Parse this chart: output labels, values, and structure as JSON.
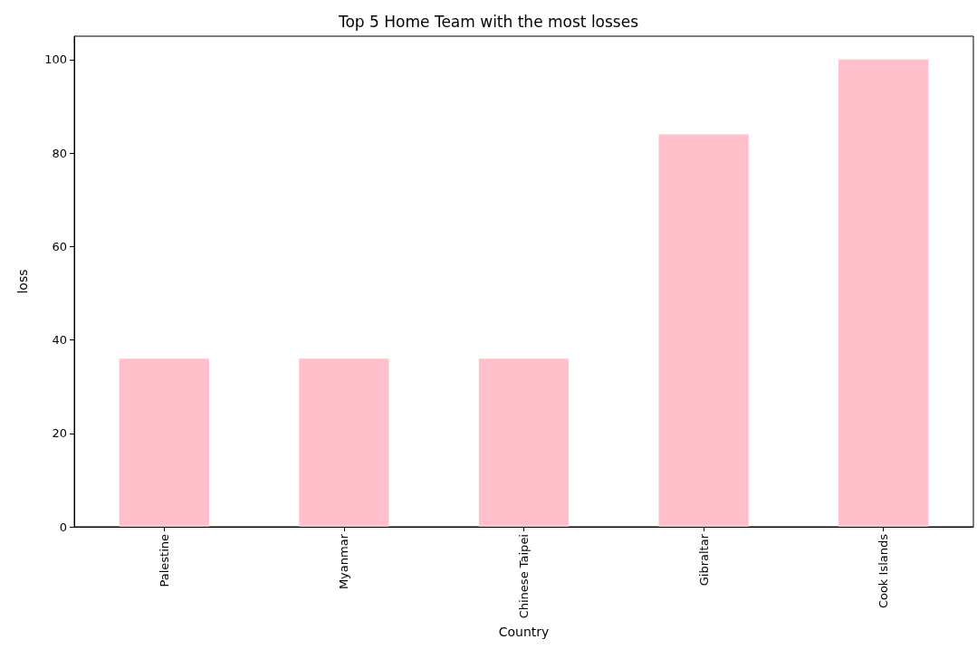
{
  "chart_data": {
    "type": "bar",
    "title": "Top 5 Home Team with the most losses",
    "xlabel": "Country",
    "ylabel": "loss",
    "categories": [
      "Palestine",
      "Myanmar",
      "Chinese Taipei",
      "Gibraltar",
      "Cook Islands"
    ],
    "values": [
      36,
      36,
      36,
      84,
      100
    ],
    "color": "#ffc0cb",
    "ylim": [
      0,
      105
    ],
    "yticks": [
      0,
      20,
      40,
      60,
      80,
      100
    ]
  }
}
